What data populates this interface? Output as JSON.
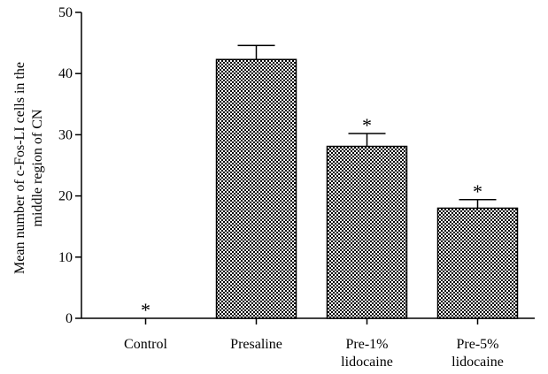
{
  "chart_data": {
    "type": "bar",
    "categories": [
      [
        "Control"
      ],
      [
        "Presaline"
      ],
      [
        "Pre-1%",
        "lidocaine"
      ],
      [
        "Pre-5%",
        "lidocaine"
      ]
    ],
    "values": [
      0,
      42.3,
      28.1,
      18.0
    ],
    "errors": [
      0,
      2.3,
      2.1,
      1.4
    ],
    "significance": [
      "*",
      "",
      "*",
      "*"
    ],
    "ylabel": [
      "Mean number of c-Fos-LI cells in the",
      "middle region of CN"
    ],
    "xlabel": "",
    "title": "",
    "ylim": [
      0,
      50
    ],
    "yticks": [
      0,
      10,
      20,
      30,
      40,
      50
    ],
    "bar_pattern": "dense black checkered",
    "colors": {
      "bar_dark": "#000000",
      "bar_light": "#ffffff"
    }
  }
}
